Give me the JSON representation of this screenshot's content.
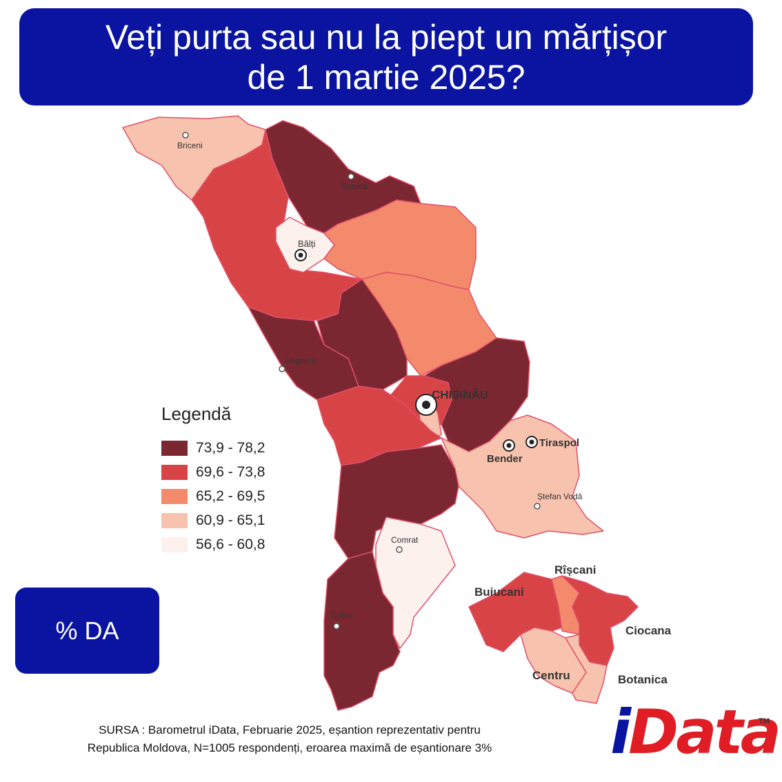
{
  "title": {
    "line1": "Veți purta sau nu la piept un mărțișor",
    "line2": "de 1 martie 2025?"
  },
  "legend": {
    "title": "Legendă",
    "items": [
      {
        "label": "73,9 - 78,2",
        "color": "#7b2731"
      },
      {
        "label": "69,6 - 73,8",
        "color": "#d84446"
      },
      {
        "label": "65,2 - 69,5",
        "color": "#f48a6c"
      },
      {
        "label": "60,9 - 65,1",
        "color": "#f8c3ae"
      },
      {
        "label": "56,6 - 60,8",
        "color": "#fdf1ee"
      }
    ]
  },
  "cities": {
    "briceni": "Briceni",
    "soroca": "Soroca",
    "balti": "Bălți",
    "ungheni": "Ungheni",
    "chisinau": "CHIȘINĂU",
    "bender": "Bender",
    "tiraspol": "Tiraspol",
    "stefan_voda": "Ștefan Vodă",
    "comrat": "Comrat",
    "cahul": "Cahul"
  },
  "sectors": {
    "riscani": "Rîșcani",
    "buiucani": "Buiucani",
    "ciocana": "Ciocana",
    "centru": "Centru",
    "botanica": "Botanica"
  },
  "badge": "% DA",
  "source": {
    "line1": "SURSA : Barometrul iData, Februarie 2025, eșantion reprezentativ pentru",
    "line2": "Republica Moldova, N=1005 respondenți, eroarea maximă de eșantionare 3%"
  },
  "logo": {
    "i": "i",
    "rest": "Data",
    "tm": "TM"
  }
}
